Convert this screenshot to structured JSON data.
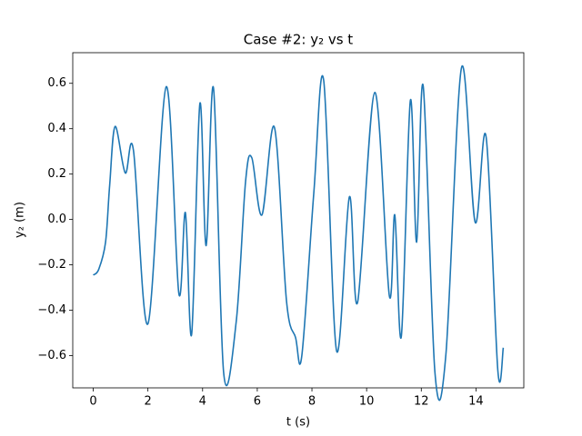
{
  "chart_data": {
    "type": "line",
    "title": "Case #2: y₂ vs t",
    "xlabel": "t (s)",
    "ylabel": "y₂ (m)",
    "x": [
      0,
      0.2,
      0.45,
      0.6,
      0.8,
      1.17,
      1.47,
      2.0,
      2.67,
      3.13,
      3.37,
      3.6,
      3.9,
      4.13,
      4.4,
      4.77,
      5.23,
      5.57,
      5.8,
      6.17,
      6.63,
      7.07,
      7.4,
      7.63,
      8.07,
      8.43,
      8.9,
      9.37,
      9.67,
      10.3,
      10.83,
      11.03,
      11.27,
      11.6,
      11.83,
      12.07,
      12.5,
      12.9,
      13.47,
      13.97,
      14.37,
      14.8,
      15.0
    ],
    "series": [
      {
        "name": "y2",
        "color": "#1f77b4",
        "values": [
          -0.245,
          -0.22,
          -0.1,
          0.15,
          0.41,
          0.205,
          0.305,
          -0.46,
          0.585,
          -0.325,
          0.03,
          -0.505,
          0.51,
          -0.115,
          0.578,
          -0.675,
          -0.45,
          0.165,
          0.272,
          0.02,
          0.405,
          -0.36,
          -0.52,
          -0.6,
          0.12,
          0.613,
          -0.578,
          0.1,
          -0.365,
          0.56,
          -0.335,
          0.02,
          -0.515,
          0.524,
          -0.1,
          0.588,
          -0.675,
          -0.595,
          0.668,
          -0.012,
          0.365,
          -0.665,
          -0.565
        ]
      }
    ],
    "xlim": [
      -0.75,
      15.75
    ],
    "ylim": [
      -0.742,
      0.735
    ],
    "xticks": [
      0,
      2,
      4,
      6,
      8,
      10,
      12,
      14
    ],
    "yticks": [
      {
        "value": -0.6,
        "label": "−0.6"
      },
      {
        "value": -0.4,
        "label": "−0.4"
      },
      {
        "value": -0.2,
        "label": "−0.2"
      },
      {
        "value": 0,
        "label": "0.0"
      },
      0.2,
      0.4,
      0.6
    ],
    "grid": false
  }
}
